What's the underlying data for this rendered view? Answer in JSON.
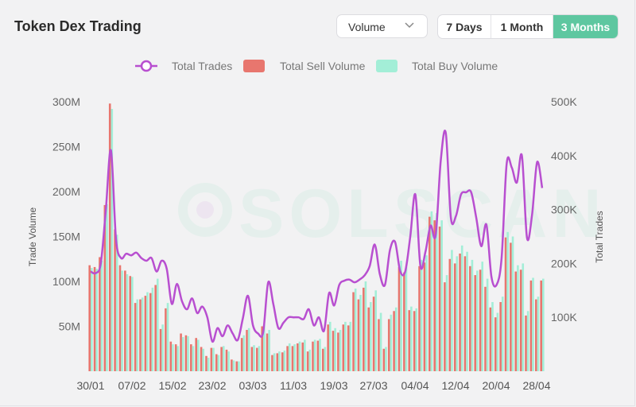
{
  "header": {
    "title": "Token Dex Trading",
    "metric_select": {
      "value": "Volume"
    },
    "range_options": [
      {
        "label": "7 Days",
        "active": false
      },
      {
        "label": "1 Month",
        "active": false
      },
      {
        "label": "3 Months",
        "active": true
      }
    ]
  },
  "colors": {
    "trades_line": "#b84fd0",
    "sell": "#e8766e",
    "buy": "#a3eed7",
    "active_range": "#5ec7a0"
  },
  "watermark": "SOLSCAN",
  "chart_data": {
    "type": "bar",
    "legend": [
      "Total Trades",
      "Total Sell Volume",
      "Total Buy Volume"
    ],
    "legend_position": "top",
    "grid": false,
    "xlabel": "",
    "ylabel_left": "Trade Volume",
    "ylabel_right": "Total Trades",
    "ylim_left": [
      0,
      300000000
    ],
    "ylim_right": [
      0,
      500000
    ],
    "y_left_ticks": [
      "300M",
      "250M",
      "200M",
      "150M",
      "100M",
      "50M"
    ],
    "y_left_tick_values": [
      300,
      250,
      200,
      150,
      100,
      50
    ],
    "y_right_ticks": [
      "500K",
      "400K",
      "300K",
      "200K",
      "100K"
    ],
    "y_right_tick_values": [
      500,
      400,
      300,
      200,
      100
    ],
    "x_tick_labels": [
      "30/01",
      "07/02",
      "15/02",
      "23/02",
      "03/03",
      "11/03",
      "19/03",
      "27/03",
      "04/04",
      "12/04",
      "20/04",
      "28/04"
    ],
    "categories": [
      "30/01",
      "31/01",
      "01/02",
      "02/02",
      "03/02",
      "04/02",
      "05/02",
      "06/02",
      "07/02",
      "08/02",
      "09/02",
      "10/02",
      "11/02",
      "12/02",
      "13/02",
      "14/02",
      "15/02",
      "16/02",
      "17/02",
      "18/02",
      "19/02",
      "20/02",
      "21/02",
      "22/02",
      "23/02",
      "24/02",
      "25/02",
      "26/02",
      "27/02",
      "28/02",
      "01/03",
      "02/03",
      "03/03",
      "04/03",
      "05/03",
      "06/03",
      "07/03",
      "08/03",
      "09/03",
      "10/03",
      "11/03",
      "12/03",
      "13/03",
      "14/03",
      "15/03",
      "16/03",
      "17/03",
      "18/03",
      "19/03",
      "20/03",
      "21/03",
      "22/03",
      "23/03",
      "24/03",
      "25/03",
      "26/03",
      "27/03",
      "28/03",
      "29/03",
      "30/03",
      "31/03",
      "01/04",
      "02/04",
      "03/04",
      "04/04",
      "05/04",
      "06/04",
      "07/04",
      "08/04",
      "09/04",
      "10/04",
      "11/04",
      "12/04",
      "13/04",
      "14/04",
      "15/04",
      "16/04",
      "17/04",
      "18/04",
      "19/04",
      "20/04",
      "21/04",
      "22/04",
      "23/04",
      "24/04",
      "25/04",
      "26/04",
      "27/04",
      "28/04",
      "29/04"
    ],
    "series": [
      {
        "name": "Total Sell Volume",
        "axis": "left",
        "unit": "M",
        "values": [
          118,
          116,
          127,
          185,
          298,
          158,
          118,
          112,
          106,
          76,
          80,
          84,
          87,
          96,
          47,
          70,
          33,
          30,
          42,
          40,
          30,
          37,
          27,
          17,
          26,
          19,
          27,
          24,
          13,
          11,
          37,
          46,
          27,
          26,
          50,
          42,
          18,
          20,
          21,
          28,
          28,
          31,
          32,
          22,
          33,
          34,
          25,
          52,
          45,
          43,
          52,
          51,
          88,
          80,
          93,
          71,
          83,
          58,
          25,
          58,
          67,
          116,
          110,
          68,
          67,
          117,
          121,
          172,
          168,
          161,
          99,
          125,
          120,
          131,
          128,
          117,
          107,
          113,
          94,
          71,
          60,
          77,
          149,
          143,
          111,
          113,
          62,
          101,
          80,
          101
        ],
        "values_buy": [
          115,
          114,
          123,
          186,
          292,
          152,
          112,
          108,
          105,
          80,
          82,
          88,
          93,
          103,
          52,
          76,
          30,
          28,
          38,
          39,
          28,
          35,
          25,
          15,
          26,
          18,
          28,
          22,
          12,
          11,
          40,
          48,
          29,
          28,
          52,
          46,
          20,
          22,
          23,
          31,
          30,
          33,
          35,
          24,
          35,
          36,
          27,
          55,
          48,
          46,
          55,
          55,
          92,
          85,
          100,
          77,
          90,
          65,
          27,
          63,
          71,
          123,
          116,
          72,
          70,
          124,
          129,
          178,
          176,
          168,
          107,
          135,
          128,
          140,
          133,
          124,
          112,
          122,
          103,
          77,
          65,
          83,
          155,
          150,
          118,
          120,
          67,
          104,
          83,
          103
        ]
      },
      {
        "name": "Total Buy Volume",
        "axis": "left",
        "unit": "M",
        "values": [
          115,
          114,
          123,
          186,
          292,
          152,
          112,
          108,
          105,
          80,
          82,
          88,
          93,
          103,
          52,
          76,
          30,
          28,
          38,
          39,
          28,
          35,
          25,
          15,
          26,
          18,
          28,
          22,
          12,
          11,
          40,
          48,
          29,
          28,
          52,
          46,
          20,
          22,
          23,
          31,
          30,
          33,
          35,
          24,
          35,
          36,
          27,
          55,
          48,
          46,
          55,
          55,
          92,
          85,
          100,
          77,
          90,
          65,
          27,
          63,
          71,
          123,
          116,
          72,
          70,
          124,
          129,
          178,
          176,
          168,
          107,
          135,
          128,
          140,
          133,
          124,
          112,
          122,
          103,
          77,
          65,
          83,
          155,
          150,
          118,
          120,
          67,
          104,
          83,
          103
        ]
      },
      {
        "name": "Total Trades",
        "axis": "right",
        "unit": "K",
        "type": "line",
        "values": [
          185,
          182,
          200,
          300,
          410,
          245,
          210,
          218,
          215,
          220,
          210,
          205,
          210,
          185,
          205,
          190,
          125,
          162,
          130,
          115,
          135,
          108,
          120,
          100,
          55,
          80,
          65,
          85,
          70,
          58,
          98,
          140,
          85,
          70,
          72,
          165,
          125,
          80,
          90,
          100,
          100,
          100,
          97,
          115,
          85,
          100,
          75,
          145,
          122,
          160,
          168,
          170,
          165,
          170,
          178,
          195,
          235,
          180,
          160,
          225,
          240,
          186,
          185,
          250,
          328,
          195,
          222,
          270,
          252,
          390,
          442,
          285,
          288,
          328,
          332,
          332,
          285,
          232,
          272,
          175,
          160,
          210,
          385,
          378,
          350,
          400,
          248,
          290,
          388,
          340
        ]
      }
    ]
  }
}
